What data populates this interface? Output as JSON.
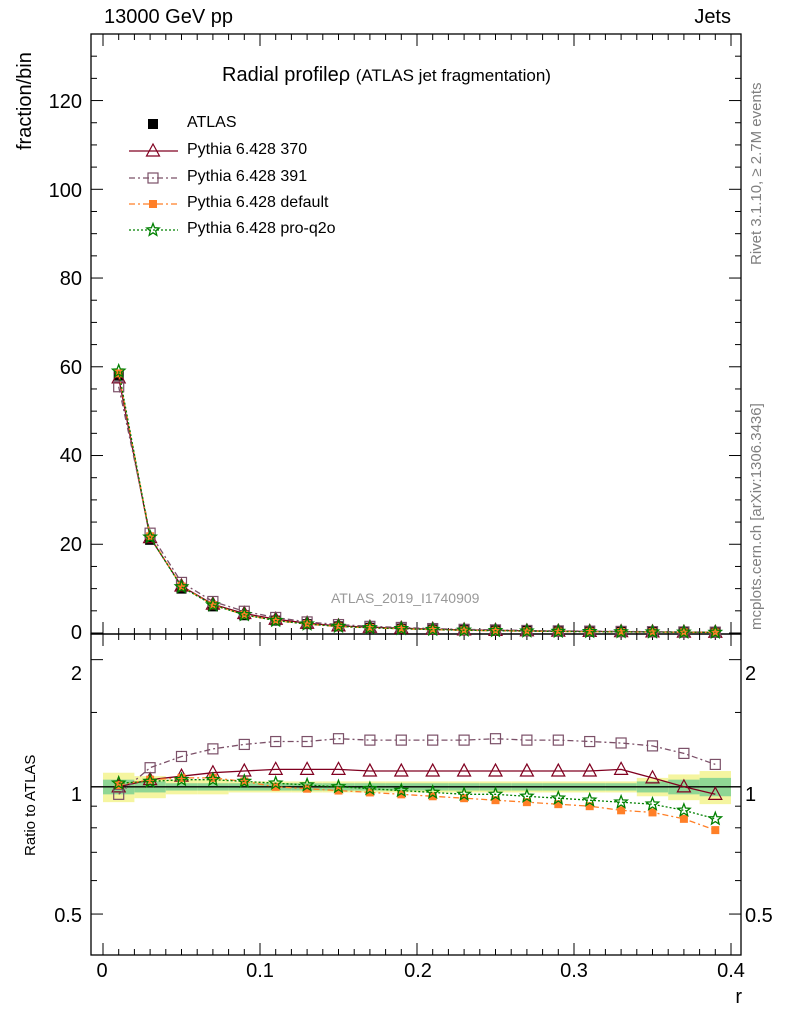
{
  "header": {
    "top_left": "13000 GeV pp",
    "top_right": "Jets",
    "title": "Radial profile",
    "title_symbol": "ρ",
    "title_sub": "(ATLAS jet fragmentation)",
    "watermark": "ATLAS_2019_I1740909",
    "side_rivet": "Rivet 3.1.10, ≥ 2.7M events",
    "side_mcplots": "mcplots.cern.ch [arXiv:1306.3436]"
  },
  "colors": {
    "atlas": "#000000",
    "p370": "#800020",
    "p391": "#7b5068",
    "default": "#ff7f27",
    "proq2o": "#008000",
    "band_inner": "#8fd694",
    "band_outer": "#f5f5a0"
  },
  "chart_data": [
    {
      "type": "line",
      "ylabel": "fraction/bin",
      "xlim": [
        0,
        0.4
      ],
      "ylim": [
        0,
        135
      ],
      "y_ticks": [
        "0",
        "20",
        "40",
        "60",
        "80",
        "100",
        "120"
      ],
      "x": [
        0.01,
        0.03,
        0.05,
        0.07,
        0.09,
        0.11,
        0.13,
        0.15,
        0.17,
        0.19,
        0.21,
        0.23,
        0.25,
        0.27,
        0.29,
        0.31,
        0.33,
        0.35,
        0.37,
        0.39
      ],
      "series": [
        {
          "name": "ATLAS",
          "values": [
            58.0,
            21.0,
            10.0,
            6.0,
            4.0,
            2.8,
            2.0,
            1.5,
            1.2,
            1.0,
            0.8,
            0.65,
            0.55,
            0.45,
            0.38,
            0.33,
            0.28,
            0.24,
            0.2,
            0.17
          ]
        },
        {
          "name": "Pythia 6.428 370",
          "values": [
            57.5,
            21.5,
            10.6,
            6.5,
            4.4,
            3.1,
            2.2,
            1.6,
            1.3,
            1.08,
            0.87,
            0.7,
            0.6,
            0.49,
            0.41,
            0.36,
            0.31,
            0.25,
            0.2,
            0.16
          ]
        },
        {
          "name": "Pythia 6.428 391",
          "values": [
            55.5,
            22.5,
            11.4,
            7.1,
            4.9,
            3.5,
            2.5,
            1.9,
            1.5,
            1.25,
            1.0,
            0.82,
            0.7,
            0.57,
            0.48,
            0.42,
            0.36,
            0.3,
            0.24,
            0.19
          ]
        },
        {
          "name": "Pythia 6.428 default",
          "values": [
            58.5,
            21.8,
            10.5,
            6.3,
            4.1,
            2.8,
            2.0,
            1.45,
            1.15,
            0.95,
            0.75,
            0.6,
            0.5,
            0.41,
            0.34,
            0.29,
            0.24,
            0.2,
            0.17,
            0.13
          ]
        },
        {
          "name": "Pythia 6.428 pro-q2o",
          "values": [
            59.0,
            21.6,
            10.4,
            6.3,
            4.1,
            2.8,
            2.0,
            1.48,
            1.18,
            0.97,
            0.77,
            0.62,
            0.52,
            0.42,
            0.35,
            0.3,
            0.25,
            0.21,
            0.17,
            0.14
          ]
        }
      ]
    },
    {
      "type": "line",
      "ylabel": "Ratio to ATLAS",
      "xlabel": "r",
      "xlim": [
        0,
        0.4
      ],
      "ylim": [
        0.4,
        2.3
      ],
      "log_y": true,
      "x_ticks": [
        "0",
        "0.1",
        "0.2",
        "0.3",
        "0.4"
      ],
      "y_ticks": [
        "0.5",
        "1",
        "2"
      ],
      "x": [
        0.01,
        0.03,
        0.05,
        0.07,
        0.09,
        0.11,
        0.13,
        0.15,
        0.17,
        0.19,
        0.21,
        0.23,
        0.25,
        0.27,
        0.29,
        0.31,
        0.33,
        0.35,
        0.37,
        0.39
      ],
      "band_inner": [
        0.04,
        0.03,
        0.02,
        0.02,
        0.02,
        0.02,
        0.02,
        0.02,
        0.02,
        0.02,
        0.02,
        0.02,
        0.02,
        0.02,
        0.02,
        0.02,
        0.02,
        0.03,
        0.04,
        0.05
      ],
      "band_outer": [
        0.08,
        0.06,
        0.04,
        0.04,
        0.03,
        0.03,
        0.03,
        0.03,
        0.03,
        0.03,
        0.03,
        0.03,
        0.03,
        0.03,
        0.03,
        0.03,
        0.03,
        0.05,
        0.07,
        0.09
      ],
      "series": [
        {
          "name": "Pythia 6.428 370",
          "values": [
            1.0,
            1.04,
            1.06,
            1.08,
            1.09,
            1.1,
            1.1,
            1.1,
            1.09,
            1.09,
            1.09,
            1.09,
            1.09,
            1.09,
            1.09,
            1.09,
            1.1,
            1.05,
            1.0,
            0.96
          ]
        },
        {
          "name": "Pythia 6.428 391",
          "values": [
            0.96,
            1.11,
            1.18,
            1.23,
            1.26,
            1.28,
            1.28,
            1.3,
            1.29,
            1.29,
            1.29,
            1.29,
            1.3,
            1.29,
            1.29,
            1.28,
            1.27,
            1.25,
            1.2,
            1.13
          ]
        },
        {
          "name": "Pythia 6.428 default",
          "values": [
            1.01,
            1.04,
            1.05,
            1.05,
            1.03,
            1.0,
            0.99,
            0.98,
            0.97,
            0.96,
            0.95,
            0.94,
            0.93,
            0.92,
            0.91,
            0.9,
            0.88,
            0.87,
            0.84,
            0.79
          ]
        },
        {
          "name": "Pythia 6.428 pro-q2o",
          "values": [
            1.02,
            1.03,
            1.04,
            1.04,
            1.03,
            1.02,
            1.01,
            1.0,
            0.99,
            0.98,
            0.97,
            0.96,
            0.96,
            0.95,
            0.94,
            0.93,
            0.92,
            0.91,
            0.88,
            0.84
          ]
        }
      ]
    }
  ]
}
